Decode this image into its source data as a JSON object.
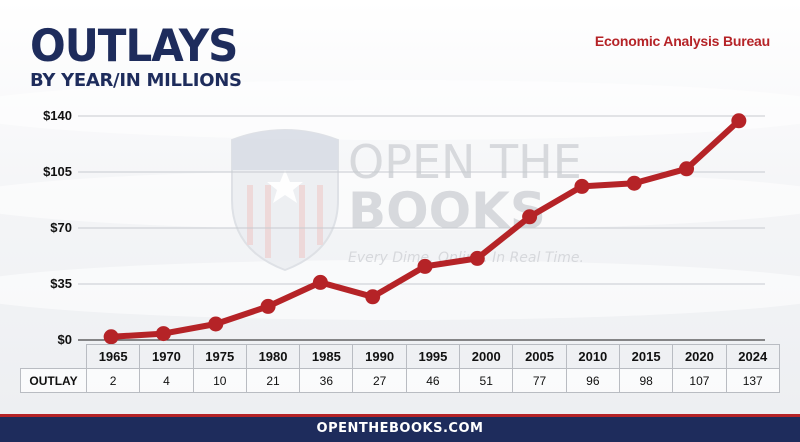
{
  "header": {
    "title": "OUTLAYS",
    "subtitle": "BY YEAR/IN MILLIONS",
    "source": "Economic Analysis Bureau"
  },
  "watermark": {
    "line1": "OPEN THE",
    "line2": "BOOKS",
    "tagline": "Every Dime. Online. In Real Time."
  },
  "table": {
    "row_label": "OUTLAY"
  },
  "footer": {
    "text": "OPENTHEBOOKS.COM"
  },
  "colors": {
    "line": "#b52327",
    "title": "#1e2c5c",
    "footer_bg": "#1e2c5c",
    "accent": "#b52327"
  },
  "chart_data": {
    "type": "line",
    "title": "OUTLAYS",
    "subtitle": "BY YEAR/IN MILLIONS",
    "categories": [
      "1965",
      "1970",
      "1975",
      "1980",
      "1985",
      "1990",
      "1995",
      "2000",
      "2005",
      "2010",
      "2015",
      "2020",
      "2024"
    ],
    "series": [
      {
        "values": [
          2,
          4,
          10,
          21,
          36,
          27,
          46,
          51,
          77,
          96,
          98,
          107,
          137
        ]
      }
    ],
    "yticks": [
      "$0",
      "$35",
      "$70",
      "$105",
      "$140"
    ],
    "ytick_values": [
      0,
      35,
      70,
      105,
      140
    ],
    "ylim": [
      0,
      140
    ],
    "grid": true,
    "legend": "none"
  }
}
